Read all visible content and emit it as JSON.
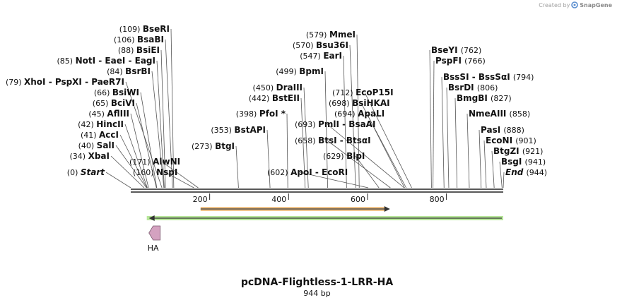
{
  "header": {
    "credit_prefix": "Created by",
    "credit_brand": "SnapGene"
  },
  "sequence": {
    "name": "pcDNA-Flightless-1-LRR-HA",
    "length_label": "944 bp",
    "length": 944
  },
  "ruler": {
    "ticks": [
      200,
      400,
      600,
      800
    ],
    "tick_labels": [
      "200",
      "400",
      "600",
      "800"
    ]
  },
  "features": [
    {
      "name": "HA",
      "type": "tag",
      "start": 46,
      "end": 72,
      "strand": -1,
      "color": "#d4a2c0"
    },
    {
      "name": "",
      "type": "orange-arrow",
      "start": 177,
      "end": 657,
      "strand": 1,
      "color": "#f0c48a"
    },
    {
      "name": "",
      "type": "green-arrow",
      "start": 46,
      "end": 944,
      "strand": -1,
      "color": "#b7e69a"
    }
  ],
  "left_sites": [
    {
      "pos": "(109)",
      "name": "BseRI",
      "site": 109
    },
    {
      "pos": "(106)",
      "name": "BsaBI",
      "site": 106
    },
    {
      "pos": "(88)",
      "name": "BsiEI",
      "site": 88
    },
    {
      "pos": "(85)",
      "name": "NotI - EaeI - EagI",
      "site": 85
    },
    {
      "pos": "(84)",
      "name": "BsrBI",
      "site": 84
    },
    {
      "pos": "(79)",
      "name": "XhoI - PspXI - PaeR7I",
      "site": 79
    },
    {
      "pos": "(66)",
      "name": "BsiWI",
      "site": 66
    },
    {
      "pos": "(65)",
      "name": "BciVI",
      "site": 65
    },
    {
      "pos": "(45)",
      "name": "AflIII",
      "site": 45
    },
    {
      "pos": "(42)",
      "name": "HincII",
      "site": 42
    },
    {
      "pos": "(41)",
      "name": "AccI",
      "site": 41
    },
    {
      "pos": "(40)",
      "name": "SalI",
      "site": 40
    },
    {
      "pos": "(34)",
      "name": "XbaI",
      "site": 34
    },
    {
      "pos": "(0)",
      "name": "Start",
      "site": 0,
      "italic": true
    }
  ],
  "mid_sites": [
    {
      "pos": "(171)",
      "name": "AlwNI",
      "site": 171
    },
    {
      "pos": "(160)",
      "name": "NspI",
      "site": 160
    },
    {
      "pos": "(273)",
      "name": "BtgI",
      "site": 273
    },
    {
      "pos": "(353)",
      "name": "BstAPI",
      "site": 353
    },
    {
      "pos": "(398)",
      "name": "PfoI *",
      "site": 398
    },
    {
      "pos": "(442)",
      "name": "BstEII",
      "site": 442
    },
    {
      "pos": "(450)",
      "name": "DraIII",
      "site": 450
    },
    {
      "pos": "(499)",
      "name": "BpmI",
      "site": 499
    },
    {
      "pos": "(547)",
      "name": "EarI",
      "site": 547
    },
    {
      "pos": "(570)",
      "name": "Bsu36I",
      "site": 570
    },
    {
      "pos": "(579)",
      "name": "MmeI",
      "site": 579
    },
    {
      "pos": "(602)",
      "name": "ApoI - EcoRI",
      "site": 602
    },
    {
      "pos": "(629)",
      "name": "BlpI",
      "site": 629
    },
    {
      "pos": "(658)",
      "name": "BtsI - BtsαI",
      "site": 658
    },
    {
      "pos": "(693)",
      "name": "PmlI - BsaAI",
      "site": 693
    },
    {
      "pos": "(694)",
      "name": "ApaLI",
      "site": 694
    },
    {
      "pos": "(698)",
      "name": "BsiHKAI",
      "site": 698
    },
    {
      "pos": "(712)",
      "name": "EcoP15I",
      "site": 712
    }
  ],
  "right_sites": [
    {
      "pos": "(762)",
      "name": "BseYI",
      "site": 762
    },
    {
      "pos": "(766)",
      "name": "PspFI",
      "site": 766
    },
    {
      "pos": "(794)",
      "name": "BssSI - BssSαI",
      "site": 794
    },
    {
      "pos": "(806)",
      "name": "BsrDI",
      "site": 806
    },
    {
      "pos": "(827)",
      "name": "BmgBI",
      "site": 827
    },
    {
      "pos": "(858)",
      "name": "NmeAIII",
      "site": 858
    },
    {
      "pos": "(888)",
      "name": "PasI",
      "site": 888
    },
    {
      "pos": "(901)",
      "name": "EcoNI",
      "site": 901
    },
    {
      "pos": "(921)",
      "name": "BtgZI",
      "site": 921
    },
    {
      "pos": "(941)",
      "name": "BsgI",
      "site": 941
    },
    {
      "pos": "(944)",
      "name": "End",
      "site": 944,
      "italic": true
    }
  ]
}
